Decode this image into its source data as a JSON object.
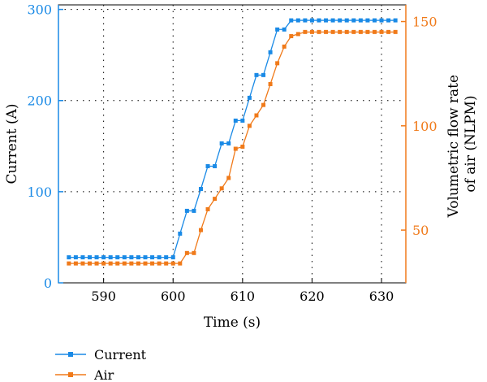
{
  "chart_data": {
    "type": "line",
    "title": "",
    "xlabel": "Time (s)",
    "ylabel_left": "Current (A)",
    "ylabel_right": [
      "Volumetric flow rate",
      "of air (NLPM)"
    ],
    "xlim": [
      583.5,
      633.5
    ],
    "ylim_left": [
      0,
      305
    ],
    "ylim_right": [
      24.7,
      158
    ],
    "xticks": [
      590,
      600,
      610,
      620,
      630
    ],
    "yticks_left": [
      0,
      100,
      200,
      300
    ],
    "yticks_right": [
      50,
      100,
      150
    ],
    "grid": true,
    "legend_position": "bottom-left",
    "series": [
      {
        "name": "Current",
        "axis": "left",
        "color": "#1a8ae6",
        "marker": "square",
        "x": [
          585,
          586,
          587,
          588,
          589,
          590,
          591,
          592,
          593,
          594,
          595,
          596,
          597,
          598,
          599,
          600,
          601,
          602,
          603,
          604,
          605,
          606,
          607,
          608,
          609,
          610,
          611,
          612,
          613,
          614,
          615,
          616,
          617,
          618,
          619,
          620,
          621,
          622,
          623,
          624,
          625,
          626,
          627,
          628,
          629,
          630,
          631,
          632
        ],
        "values": [
          28,
          28,
          28,
          28,
          28,
          28,
          28,
          28,
          28,
          28,
          28,
          28,
          28,
          28,
          28,
          28,
          54,
          79,
          79,
          103,
          128,
          128,
          153,
          153,
          178,
          178,
          203,
          228,
          228,
          253,
          278,
          278,
          288,
          288,
          288,
          288,
          288,
          288,
          288,
          288,
          288,
          288,
          288,
          288,
          288,
          288,
          288,
          288
        ]
      },
      {
        "name": "Air",
        "axis": "right",
        "color": "#f07a1a",
        "marker": "square",
        "x": [
          585,
          586,
          587,
          588,
          589,
          590,
          591,
          592,
          593,
          594,
          595,
          596,
          597,
          598,
          599,
          600,
          601,
          602,
          603,
          604,
          605,
          606,
          607,
          608,
          609,
          610,
          611,
          612,
          613,
          614,
          615,
          616,
          617,
          618,
          619,
          620,
          621,
          622,
          623,
          624,
          625,
          626,
          627,
          628,
          629,
          630,
          631,
          632
        ],
        "values": [
          34,
          34,
          34,
          34,
          34,
          34,
          34,
          34,
          34,
          34,
          34,
          34,
          34,
          34,
          34,
          34,
          34,
          39,
          39,
          50,
          60,
          65,
          70,
          75,
          89,
          90,
          100,
          105,
          110,
          120,
          130,
          138,
          143,
          144,
          145,
          145,
          145,
          145,
          145,
          145,
          145,
          145,
          145,
          145,
          145,
          145,
          145,
          145
        ]
      }
    ]
  },
  "colors": {
    "left_axis": "#1a8ae6",
    "right_axis": "#f07a1a"
  }
}
